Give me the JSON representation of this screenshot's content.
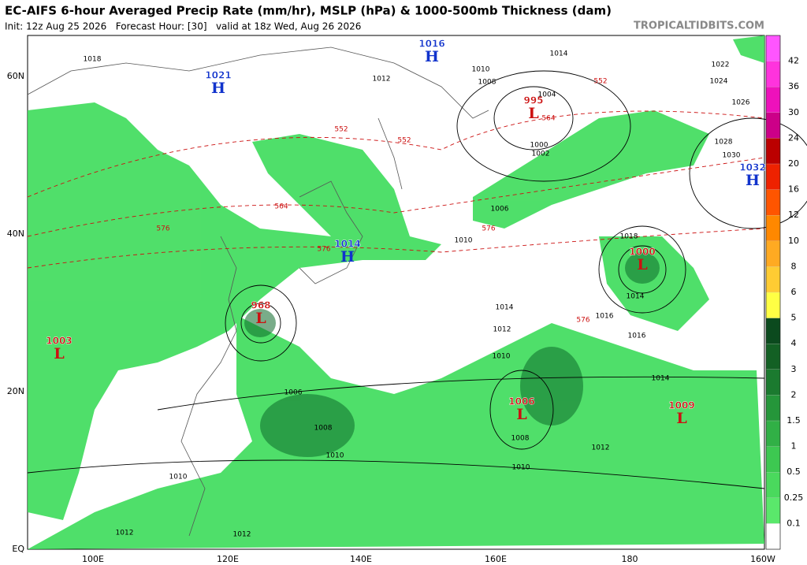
{
  "header": {
    "title": "EC-AIFS 6-hour Averaged Precip Rate (mm/hr), MSLP (hPa) & 1000-500mb Thickness (dam)",
    "subtitle": "Init: 12z Aug 25 2026   Forecast Hour: [30]   valid at 18z Wed, Aug 26 2026",
    "site": "TROPICALTIDBITS.COM"
  },
  "map": {
    "lat_labels": [
      "60N",
      "40N",
      "20N",
      "EQ"
    ],
    "lon_labels": [
      "100E",
      "120E",
      "140E",
      "160E",
      "180",
      "160W"
    ],
    "pressure_centers": [
      {
        "letter": "H",
        "value": "1021"
      },
      {
        "letter": "H",
        "value": "1016"
      },
      {
        "letter": "L",
        "value": "995"
      },
      {
        "letter": "H",
        "value": "1032"
      },
      {
        "letter": "H",
        "value": "1014"
      },
      {
        "letter": "L",
        "value": "1000"
      },
      {
        "letter": "L",
        "value": "968"
      },
      {
        "letter": "L",
        "value": "1003"
      },
      {
        "letter": "L",
        "value": "1006"
      },
      {
        "letter": "L",
        "value": "1009"
      }
    ],
    "isobar_labels": [
      "1018",
      "1010",
      "1014",
      "1022",
      "1024",
      "1026",
      "1028",
      "1030",
      "1012",
      "1008",
      "1004",
      "1000",
      "1002",
      "1006",
      "1010",
      "1018",
      "1014",
      "1014",
      "1016",
      "1012",
      "1016",
      "1010",
      "1014",
      "1006",
      "1008",
      "1010",
      "1010",
      "1008",
      "1012",
      "1010",
      "1012",
      "1012"
    ],
    "thickness_labels": [
      "552",
      "552",
      "564",
      "552",
      "564",
      "576",
      "576",
      "576",
      "576"
    ]
  },
  "colorbar": {
    "labels": [
      "42",
      "36",
      "30",
      "24",
      "20",
      "16",
      "12",
      "10",
      "8",
      "6",
      "5",
      "4",
      "3",
      "2",
      "1.5",
      "1",
      "0.5",
      "0.25",
      "0.1"
    ],
    "colors": [
      "#ff55ff",
      "#ff33dd",
      "#ee11bb",
      "#cc0088",
      "#bb0000",
      "#ee2200",
      "#ff5500",
      "#ff8800",
      "#ffaa22",
      "#ffcc33",
      "#ffff44",
      "#0b4a1e",
      "#136024",
      "#1b7a2f",
      "#25963a",
      "#31b046",
      "#3dc851",
      "#4ad95d",
      "#5ae86b",
      "#ffffff"
    ]
  }
}
